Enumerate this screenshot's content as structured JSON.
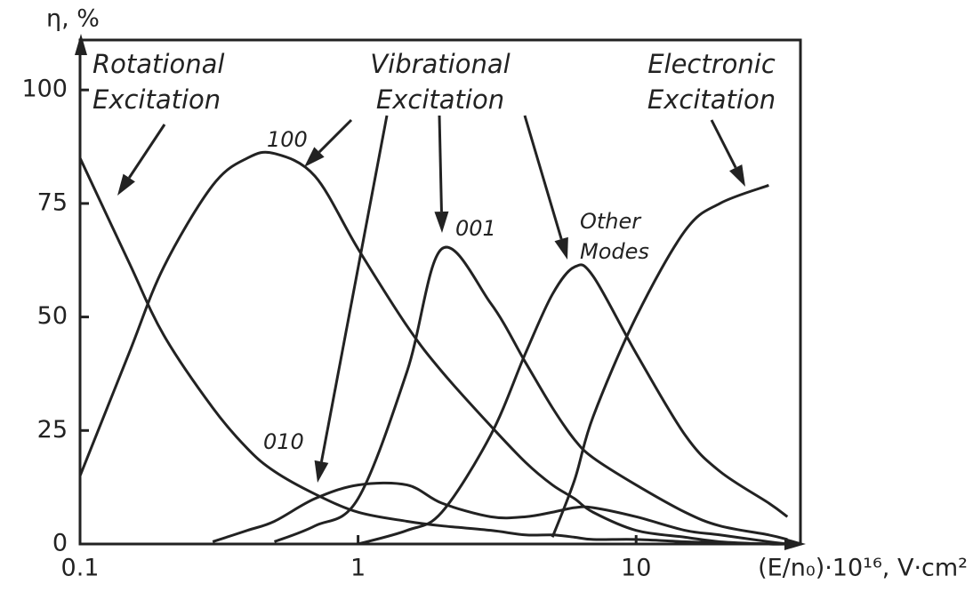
{
  "chart_data": {
    "type": "line",
    "ylabel": "η, %",
    "xlabel": "(E/n₀)·10¹⁶, V·cm²",
    "xscale": "log",
    "x": [
      0.1,
      0.15,
      0.2,
      0.3,
      0.4,
      0.5,
      0.7,
      1,
      1.5,
      2,
      3,
      4,
      5,
      6,
      7,
      10,
      15,
      20,
      30,
      35
    ],
    "xlim": [
      0.1,
      39
    ],
    "xticks": [
      0.1,
      1,
      10
    ],
    "ylim": [
      0,
      111
    ],
    "yticks": [
      0,
      25,
      50,
      75,
      100
    ],
    "annotations": [
      "Rotational Excitation",
      "Vibrational Excitation",
      "Electronic Excitation"
    ],
    "series": [
      {
        "color": "#222222",
        "values": [
          85,
          62,
          46,
          30,
          21,
          16,
          11,
          7,
          5,
          4,
          3,
          2,
          2,
          1.5,
          1,
          1,
          0.5,
          0.3,
          0,
          0
        ]
      },
      {
        "name": "100",
        "color": "#222222",
        "values": [
          15,
          42,
          61,
          79,
          85,
          86,
          81,
          65,
          48,
          38,
          26,
          18,
          13,
          10,
          7,
          3,
          1.5,
          0.5,
          0,
          0
        ]
      },
      {
        "name": "010",
        "color": "#222222",
        "values": [
          null,
          null,
          null,
          0.5,
          3,
          5,
          10,
          13,
          13,
          9,
          6,
          6,
          7,
          8,
          8,
          6,
          3,
          2,
          0.5,
          0
        ]
      },
      {
        "name": "001",
        "color": "#222222",
        "values": [
          null,
          null,
          null,
          null,
          null,
          0.5,
          4,
          10,
          38,
          65,
          53,
          40,
          30,
          23,
          19,
          13,
          7,
          4,
          2,
          1
        ]
      },
      {
        "name": "Other Modes",
        "color": "#222222",
        "values": [
          null,
          null,
          null,
          null,
          null,
          null,
          null,
          0,
          3,
          7,
          24,
          42,
          55,
          61,
          59,
          42,
          24,
          16,
          9,
          6
        ]
      },
      {
        "color": "#222222",
        "values": [
          null,
          null,
          null,
          null,
          null,
          null,
          null,
          null,
          null,
          null,
          null,
          null,
          1.5,
          14,
          28,
          50,
          69,
          75,
          79,
          null
        ]
      }
    ]
  }
}
